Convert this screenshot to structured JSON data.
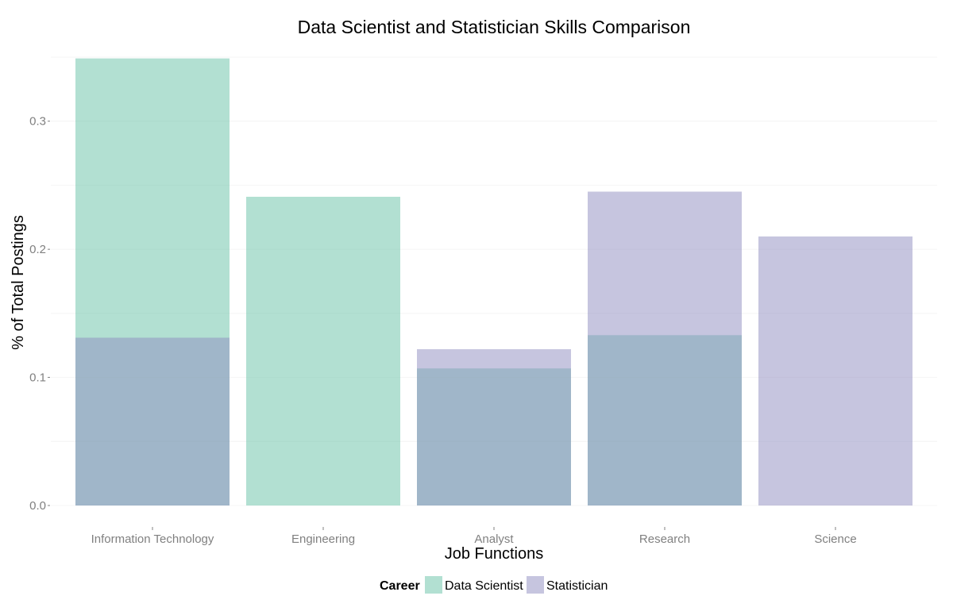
{
  "chart_data": {
    "type": "bar",
    "barmode": "overlay",
    "title": "Data Scientist and Statistician Skills Comparison",
    "xlabel": "Job Functions",
    "ylabel": "% of Total Postings",
    "categories": [
      "Information Technology",
      "Engineering",
      "Analyst",
      "Research",
      "Science"
    ],
    "series": [
      {
        "name": "Data Scientist",
        "color": "#66c2a5",
        "values": [
          0.349,
          0.241,
          0.107,
          0.133,
          0.0
        ]
      },
      {
        "name": "Statistician",
        "color": "#8e8cc0",
        "values": [
          0.131,
          0.0,
          0.122,
          0.245,
          0.21
        ]
      }
    ],
    "opacity": 0.5,
    "ylim": [
      0,
      0.35
    ],
    "yticks": [
      0.0,
      0.1,
      0.2,
      0.3
    ],
    "ytick_labels": [
      "0.0",
      "0.1",
      "0.2",
      "0.3"
    ],
    "grid": true,
    "legend": {
      "title": "Career",
      "position": "bottom",
      "entries": [
        "Data Scientist",
        "Statistician"
      ]
    }
  }
}
